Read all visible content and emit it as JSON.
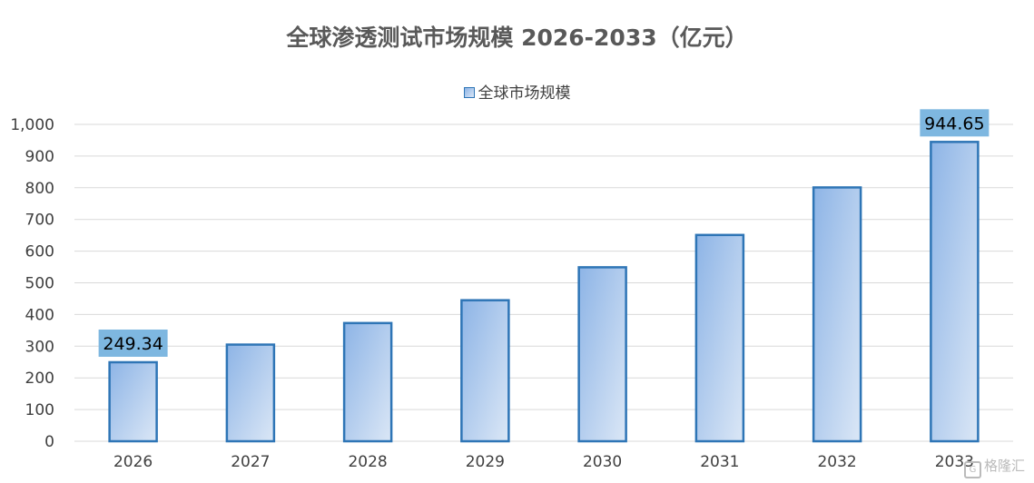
{
  "chart_data": {
    "type": "bar",
    "title": "全球渗透测试市场规模 2026-2033（亿元）",
    "categories": [
      "2026",
      "2027",
      "2028",
      "2029",
      "2030",
      "2031",
      "2032",
      "2033"
    ],
    "series": [
      {
        "name": "全球市场规模",
        "values": [
          249.34,
          305,
          373,
          445,
          549,
          651,
          801,
          944.65
        ]
      }
    ],
    "data_labels": [
      {
        "index": 0,
        "text": "249.34"
      },
      {
        "index": 7,
        "text": "944.65"
      }
    ],
    "ylim": [
      0,
      1000
    ],
    "yticks": [
      0,
      100,
      200,
      300,
      400,
      500,
      600,
      700,
      800,
      900,
      1000
    ],
    "ytick_labels": [
      "0",
      "100",
      "200",
      "300",
      "400",
      "500",
      "600",
      "700",
      "800",
      "900",
      "1,000"
    ],
    "xlabel": "",
    "ylabel": "",
    "grid": true,
    "legend_position": "top",
    "colors": {
      "bar_border": "#2e75b6",
      "bar_fill_start": "#8db4e6",
      "bar_fill_end": "#dbe7f6",
      "label_bg": "#7eb7e0",
      "grid": "#d9d9d9"
    }
  },
  "watermark": {
    "text": "格隆汇",
    "icon": "g-logo-icon"
  }
}
